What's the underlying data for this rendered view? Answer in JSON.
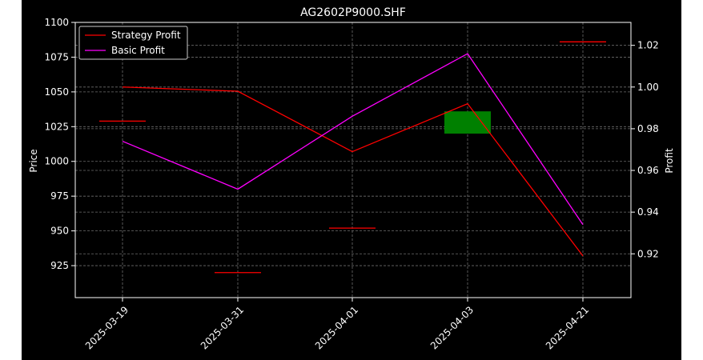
{
  "chart_data": {
    "type": "line",
    "title": "AG2602P9000.SHF",
    "categories": [
      "2025-03-19",
      "2025-03-31",
      "2025-04-01",
      "2025-04-03",
      "2025-04-21"
    ],
    "xlabel": "",
    "ylabel_left": "Price",
    "ylabel_right": "Profit",
    "ylim_left": [
      902,
      1100
    ],
    "yticks_left": [
      925,
      950,
      975,
      1000,
      1025,
      1050,
      1075,
      1100
    ],
    "ylim_right": [
      0.899,
      1.031
    ],
    "yticks_right": [
      0.92,
      0.94,
      0.96,
      0.98,
      1.0,
      1.02
    ],
    "ytick_labels_right": [
      "0.92",
      "0.94",
      "0.96",
      "0.98",
      "1.00",
      "1.02"
    ],
    "series": [
      {
        "name": "Strategy Profit",
        "axis": "right",
        "color": "#ff0000",
        "values": [
          1.0,
          0.998,
          0.969,
          0.992,
          0.919
        ]
      },
      {
        "name": "Basic Profit",
        "axis": "right",
        "color": "#ff00ff",
        "values": [
          0.974,
          0.951,
          0.986,
          1.016,
          0.934
        ]
      }
    ],
    "candles": [
      {
        "date": "2025-03-19",
        "open": 1029,
        "close": 1029,
        "color": "#ff0000"
      },
      {
        "date": "2025-03-31",
        "open": 920,
        "close": 920,
        "color": "#ff0000"
      },
      {
        "date": "2025-04-01",
        "open": 952,
        "close": 952,
        "color": "#ff0000"
      },
      {
        "date": "2025-04-03",
        "open": 1020,
        "close": 1036,
        "color": "#008000"
      },
      {
        "date": "2025-04-21",
        "open": 1086,
        "close": 1086,
        "color": "#ff0000"
      }
    ],
    "legend_position": "top-left",
    "grid": true,
    "colors": {
      "background": "#000000",
      "foreground": "#ffffff",
      "grid": "#6e6e6e"
    }
  }
}
